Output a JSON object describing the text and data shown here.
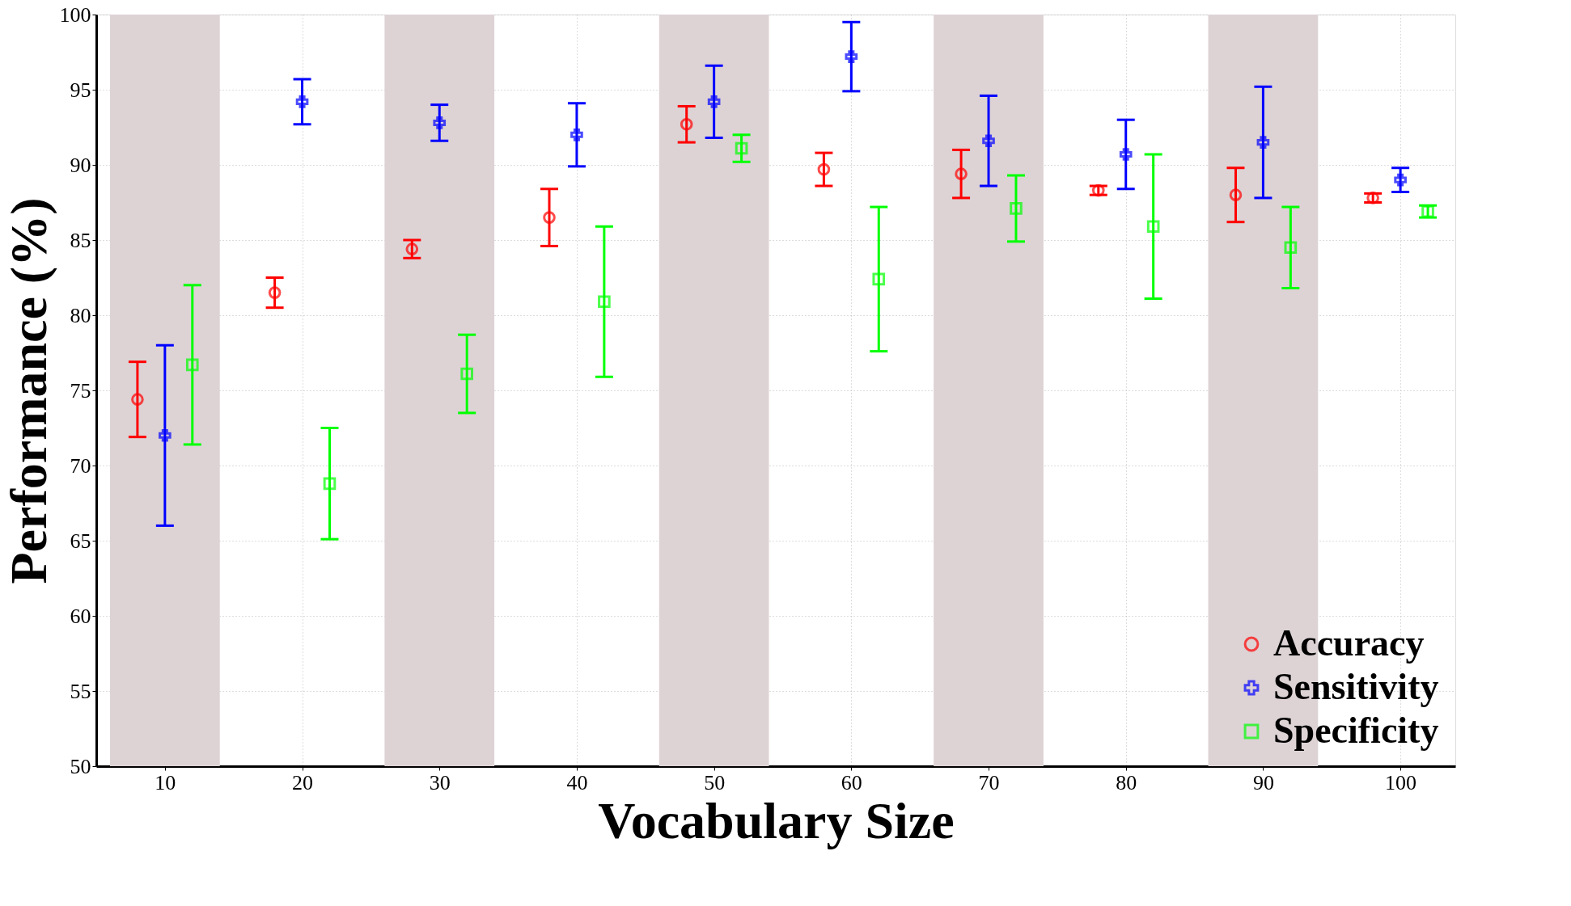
{
  "chart_data": {
    "type": "scatter",
    "xlabel": "Vocabulary Size",
    "ylabel": "Performance (%)",
    "xlim": [
      5,
      104
    ],
    "ylim": [
      50,
      100
    ],
    "xticks": [
      10,
      20,
      30,
      40,
      50,
      60,
      70,
      80,
      90,
      100
    ],
    "yticks": [
      50,
      55,
      60,
      65,
      70,
      75,
      80,
      85,
      90,
      95,
      100
    ],
    "grid": true,
    "legend": "bottom right",
    "bands": [
      {
        "axis": "x",
        "from": 6,
        "to": 14,
        "color": "#ddd3d5"
      },
      {
        "axis": "x",
        "from": 26,
        "to": 34,
        "color": "#ddd3d5"
      },
      {
        "axis": "x",
        "from": 46,
        "to": 54,
        "color": "#ddd3d5"
      },
      {
        "axis": "x",
        "from": 66,
        "to": 74,
        "color": "#ddd3d5"
      },
      {
        "axis": "x",
        "from": 86,
        "to": 94,
        "color": "#ddd3d5"
      }
    ],
    "series": [
      {
        "name": "Accuracy",
        "color": "#ff0000",
        "marker": "circle",
        "x": [
          8,
          18,
          28,
          38,
          48,
          58,
          68,
          78,
          88,
          98
        ],
        "values": [
          74.4,
          81.5,
          84.4,
          86.5,
          92.7,
          89.7,
          89.4,
          88.3,
          88.0,
          87.8
        ],
        "errors": [
          2.5,
          1.0,
          0.6,
          1.9,
          1.2,
          1.1,
          1.6,
          0.3,
          1.8,
          0.3
        ]
      },
      {
        "name": "Sensitivity",
        "color": "#0000ff",
        "marker": "cross",
        "x": [
          10,
          20,
          30,
          40,
          50,
          60,
          70,
          80,
          90,
          100
        ],
        "values": [
          72.0,
          94.2,
          92.8,
          92.0,
          94.2,
          97.2,
          91.6,
          90.7,
          91.5,
          89.0
        ],
        "errors": [
          6.0,
          1.5,
          1.2,
          2.1,
          2.4,
          2.3,
          3.0,
          2.3,
          3.7,
          0.8
        ]
      },
      {
        "name": "Specificity",
        "color": "#00ff00",
        "marker": "square",
        "x": [
          12,
          22,
          32,
          42,
          52,
          62,
          72,
          82,
          92,
          102
        ],
        "values": [
          76.7,
          68.8,
          76.1,
          80.9,
          91.1,
          82.4,
          87.1,
          85.9,
          84.5,
          86.9
        ],
        "errors": [
          5.3,
          3.7,
          2.6,
          5.0,
          0.9,
          4.8,
          2.2,
          4.8,
          2.7,
          0.4
        ]
      }
    ]
  }
}
